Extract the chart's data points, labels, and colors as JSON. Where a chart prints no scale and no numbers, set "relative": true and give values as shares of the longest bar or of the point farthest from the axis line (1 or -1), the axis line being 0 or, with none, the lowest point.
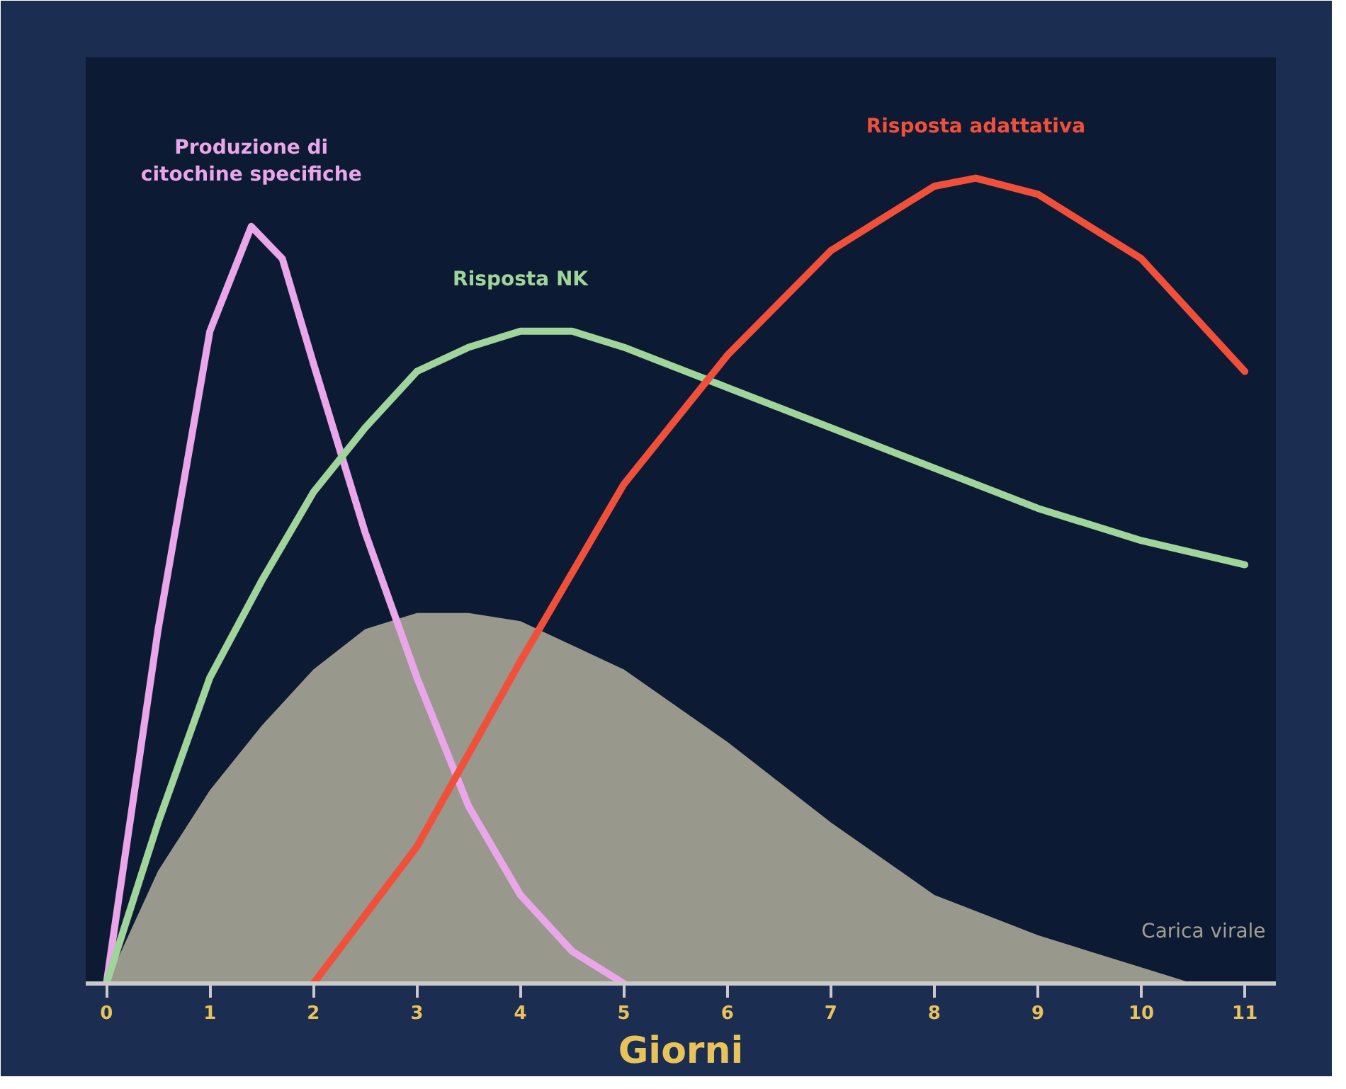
{
  "chart_data": {
    "type": "line",
    "relative": true,
    "xlabel": "Giorni",
    "xlim": [
      -0.2,
      11.3
    ],
    "xticks": [
      0,
      1,
      2,
      3,
      4,
      5,
      6,
      7,
      8,
      9,
      10,
      11
    ],
    "grid": false,
    "marker": "none",
    "line_style": "solid",
    "series": [
      {
        "name": "Carica virale",
        "type": "area",
        "color": "#a19f92",
        "x": [
          0,
          0.5,
          1,
          1.5,
          2,
          2.5,
          3,
          3.5,
          4,
          5,
          6,
          7,
          8,
          9,
          10,
          10.5,
          11
        ],
        "values": [
          0,
          0.14,
          0.24,
          0.32,
          0.39,
          0.44,
          0.46,
          0.46,
          0.45,
          0.39,
          0.3,
          0.2,
          0.11,
          0.06,
          0.02,
          0,
          0
        ]
      },
      {
        "name": "Produzione di citochine specifiche",
        "color": "#e9a6e8",
        "x": [
          0,
          0.5,
          1,
          1.4,
          1.7,
          2,
          2.5,
          3,
          3.5,
          4,
          4.5,
          5
        ],
        "values": [
          0,
          0.44,
          0.81,
          0.94,
          0.9,
          0.77,
          0.56,
          0.38,
          0.22,
          0.11,
          0.04,
          0
        ]
      },
      {
        "name": "Risposta NK",
        "color": "#9fd49a",
        "x": [
          0,
          0.5,
          1,
          1.5,
          2,
          2.5,
          3,
          3.5,
          4,
          4.5,
          5,
          6,
          7,
          8,
          9,
          10,
          11
        ],
        "values": [
          0,
          0.2,
          0.38,
          0.5,
          0.61,
          0.69,
          0.76,
          0.79,
          0.81,
          0.81,
          0.79,
          0.74,
          0.69,
          0.64,
          0.59,
          0.55,
          0.52
        ]
      },
      {
        "name": "Risposta adattativa",
        "color": "#f0503a",
        "x": [
          2,
          3,
          4,
          5,
          6,
          7,
          8,
          8.4,
          9,
          10,
          11
        ],
        "values": [
          0,
          0.17,
          0.4,
          0.62,
          0.78,
          0.91,
          0.99,
          1,
          0.98,
          0.9,
          0.76
        ]
      }
    ]
  }
}
